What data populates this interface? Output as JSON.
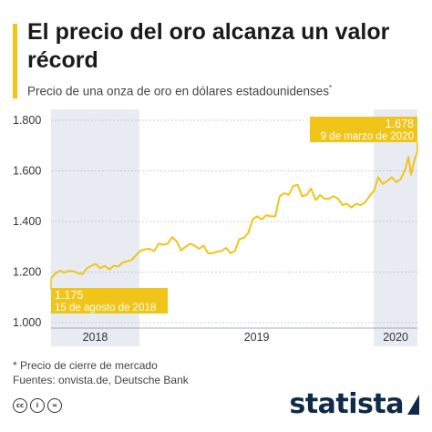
{
  "title": "El precio del oro alcanza un valor récord",
  "subtitle": "Precio de una onza de oro en dólares estadounidenses",
  "subtitle_mark": "*",
  "footnote": "* Precio de cierre de mercado",
  "sources": "Fuentes: onvista.de, Deutsche Bank",
  "brand": "statista",
  "icons": [
    "cc-icon",
    "by-icon",
    "nd-icon"
  ],
  "icon_glyphs": [
    "cc",
    "i",
    "="
  ],
  "colors": {
    "accent": "#f0c419",
    "line": "#f0c419",
    "year_band": "#e8ecf2",
    "brand": "#0f2a4a"
  },
  "chart_data": {
    "type": "line",
    "title": "",
    "xlabel": "",
    "ylabel": "",
    "ylim": [
      1000,
      1800
    ],
    "yticks": [
      1000,
      1200,
      1400,
      1600,
      1800
    ],
    "ytick_labels": [
      "1.000",
      "1.200",
      "1.400",
      "1.600",
      "1.800"
    ],
    "xlim": [
      "2018-08-15",
      "2020-03-09"
    ],
    "year_labels": [
      {
        "label": "2018",
        "start": "2018-08-15",
        "end": "2018-12-31",
        "shaded": true
      },
      {
        "label": "2019",
        "start": "2019-01-01",
        "end": "2019-12-31",
        "shaded": false
      },
      {
        "label": "2020",
        "start": "2020-01-01",
        "end": "2020-03-09",
        "shaded": true
      }
    ],
    "grid": true,
    "series": [
      {
        "values": [
          [
            "2018-08-15",
            1175
          ],
          [
            "2018-08-22",
            1195
          ],
          [
            "2018-08-29",
            1205
          ],
          [
            "2018-09-05",
            1198
          ],
          [
            "2018-09-12",
            1205
          ],
          [
            "2018-09-19",
            1203
          ],
          [
            "2018-09-26",
            1195
          ],
          [
            "2018-10-03",
            1192
          ],
          [
            "2018-10-10",
            1215
          ],
          [
            "2018-10-17",
            1225
          ],
          [
            "2018-10-24",
            1232
          ],
          [
            "2018-10-31",
            1215
          ],
          [
            "2018-11-07",
            1225
          ],
          [
            "2018-11-14",
            1210
          ],
          [
            "2018-11-21",
            1225
          ],
          [
            "2018-11-28",
            1222
          ],
          [
            "2018-12-05",
            1238
          ],
          [
            "2018-12-12",
            1243
          ],
          [
            "2018-12-19",
            1248
          ],
          [
            "2018-12-26",
            1268
          ],
          [
            "2019-01-02",
            1285
          ],
          [
            "2019-01-09",
            1290
          ],
          [
            "2019-01-16",
            1292
          ],
          [
            "2019-01-23",
            1283
          ],
          [
            "2019-01-30",
            1312
          ],
          [
            "2019-02-06",
            1308
          ],
          [
            "2019-02-13",
            1312
          ],
          [
            "2019-02-20",
            1338
          ],
          [
            "2019-02-27",
            1322
          ],
          [
            "2019-03-06",
            1285
          ],
          [
            "2019-03-13",
            1300
          ],
          [
            "2019-03-20",
            1312
          ],
          [
            "2019-03-27",
            1305
          ],
          [
            "2019-04-03",
            1292
          ],
          [
            "2019-04-10",
            1305
          ],
          [
            "2019-04-17",
            1275
          ],
          [
            "2019-04-24",
            1275
          ],
          [
            "2019-05-01",
            1280
          ],
          [
            "2019-05-08",
            1283
          ],
          [
            "2019-05-15",
            1296
          ],
          [
            "2019-05-22",
            1275
          ],
          [
            "2019-05-29",
            1283
          ],
          [
            "2019-06-05",
            1330
          ],
          [
            "2019-06-12",
            1335
          ],
          [
            "2019-06-19",
            1355
          ],
          [
            "2019-06-26",
            1410
          ],
          [
            "2019-07-03",
            1420
          ],
          [
            "2019-07-10",
            1408
          ],
          [
            "2019-07-17",
            1425
          ],
          [
            "2019-07-24",
            1420
          ],
          [
            "2019-07-31",
            1420
          ],
          [
            "2019-08-07",
            1500
          ],
          [
            "2019-08-14",
            1512
          ],
          [
            "2019-08-21",
            1505
          ],
          [
            "2019-08-28",
            1540
          ],
          [
            "2019-09-04",
            1545
          ],
          [
            "2019-09-11",
            1500
          ],
          [
            "2019-09-18",
            1505
          ],
          [
            "2019-09-25",
            1530
          ],
          [
            "2019-10-02",
            1485
          ],
          [
            "2019-10-09",
            1505
          ],
          [
            "2019-10-16",
            1490
          ],
          [
            "2019-10-23",
            1490
          ],
          [
            "2019-10-30",
            1500
          ],
          [
            "2019-11-06",
            1490
          ],
          [
            "2019-11-13",
            1465
          ],
          [
            "2019-11-20",
            1470
          ],
          [
            "2019-11-27",
            1455
          ],
          [
            "2019-12-04",
            1470
          ],
          [
            "2019-12-11",
            1465
          ],
          [
            "2019-12-18",
            1475
          ],
          [
            "2019-12-25",
            1500
          ],
          [
            "2020-01-01",
            1520
          ],
          [
            "2020-01-08",
            1575
          ],
          [
            "2020-01-15",
            1548
          ],
          [
            "2020-01-22",
            1560
          ],
          [
            "2020-01-29",
            1575
          ],
          [
            "2020-02-05",
            1555
          ],
          [
            "2020-02-12",
            1568
          ],
          [
            "2020-02-19",
            1605
          ],
          [
            "2020-02-24",
            1655
          ],
          [
            "2020-02-28",
            1585
          ],
          [
            "2020-03-04",
            1640
          ],
          [
            "2020-03-09",
            1678
          ]
        ]
      }
    ],
    "annotations": [
      {
        "value_label": "1.175",
        "date_label": "15 de agosto de 2018",
        "x": "2018-08-15",
        "y": 1175
      },
      {
        "value_label": "1.678",
        "date_label": "9 de marzo de 2020",
        "x": "2020-03-09",
        "y": 1678
      }
    ]
  }
}
